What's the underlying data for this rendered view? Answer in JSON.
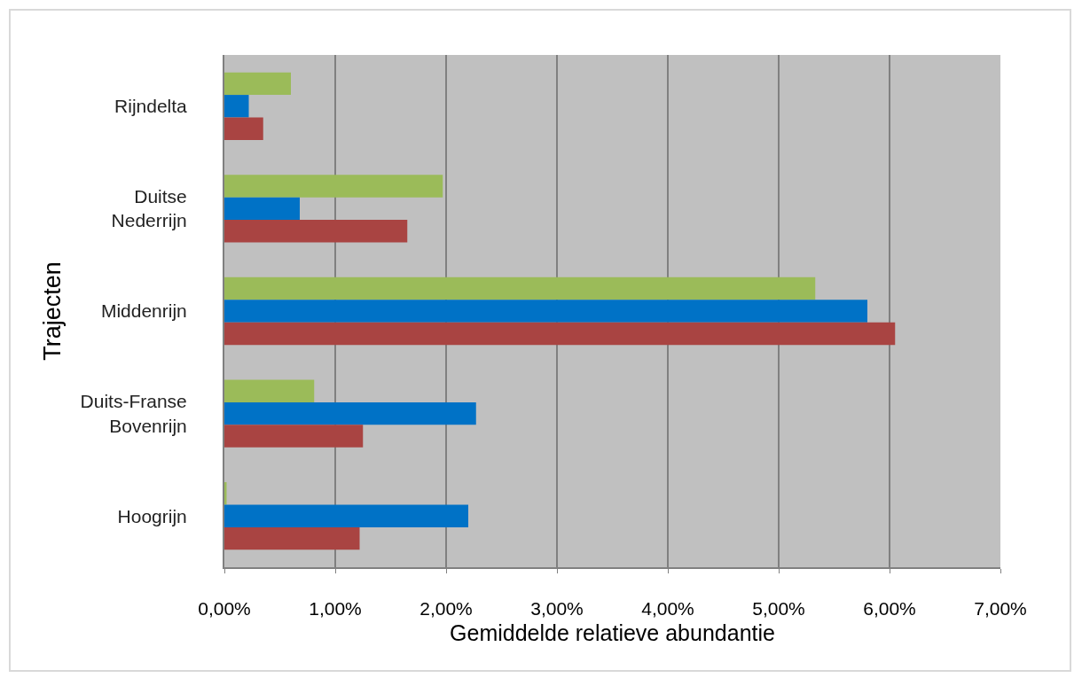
{
  "chart_data": {
    "type": "bar",
    "orientation": "horizontal",
    "xlabel": "Gemiddelde relatieve abundantie",
    "ylabel": "Trajecten",
    "categories": [
      "Rijndelta",
      "Duitse Nederrijn",
      "Middenrijn",
      "Duits-Franse Bovenrijn",
      "Hoogrijn"
    ],
    "series": [
      {
        "color": "#9bbb59",
        "values": [
          0.6,
          1.97,
          5.33,
          0.81,
          0.02
        ]
      },
      {
        "color": "#0072c6",
        "values": [
          0.22,
          0.68,
          5.8,
          2.27,
          2.2
        ]
      },
      {
        "color": "#a94442",
        "values": [
          0.35,
          1.65,
          6.05,
          1.25,
          1.22
        ]
      }
    ],
    "xlim": [
      0,
      7
    ],
    "xticks": [
      {
        "value": 0,
        "label": "0,00%"
      },
      {
        "value": 1,
        "label": "1,00%"
      },
      {
        "value": 2,
        "label": "2,00%"
      },
      {
        "value": 3,
        "label": "3,00%"
      },
      {
        "value": 4,
        "label": "4,00%"
      },
      {
        "value": 5,
        "label": "5,00%"
      },
      {
        "value": 6,
        "label": "6,00%"
      },
      {
        "value": 7,
        "label": "7,00%"
      }
    ],
    "grid": "x"
  }
}
